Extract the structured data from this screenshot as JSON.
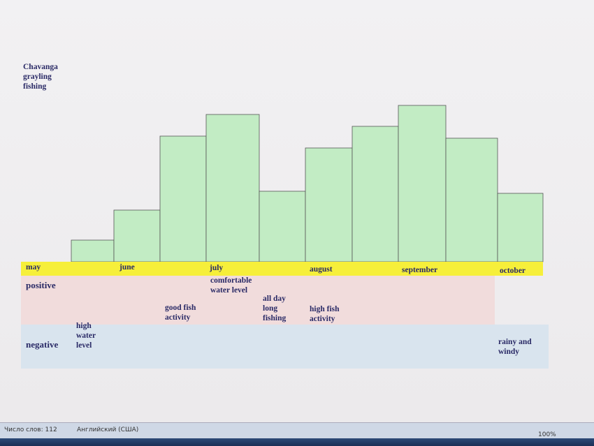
{
  "document": {
    "title": [
      "Chavanga",
      "grayling",
      "fishing"
    ],
    "months": [
      "may",
      "june",
      "july",
      "august",
      "september",
      "october"
    ],
    "rows": {
      "positive": "positive",
      "negative": "negative"
    },
    "notes": [
      {
        "lines": [
          "comfortable",
          "water level"
        ]
      },
      {
        "lines": [
          "all day",
          "long",
          "fishing"
        ]
      },
      {
        "lines": [
          "good fish",
          "activity"
        ]
      },
      {
        "lines": [
          "high fish",
          "activity"
        ]
      },
      {
        "lines": [
          "high",
          "water",
          "level"
        ]
      },
      {
        "lines": [
          "rainy and",
          "windy"
        ]
      }
    ]
  },
  "status_bar": {
    "word_count": "Число слов: 112",
    "language": "Английский (США)",
    "zoom": "100%"
  }
}
